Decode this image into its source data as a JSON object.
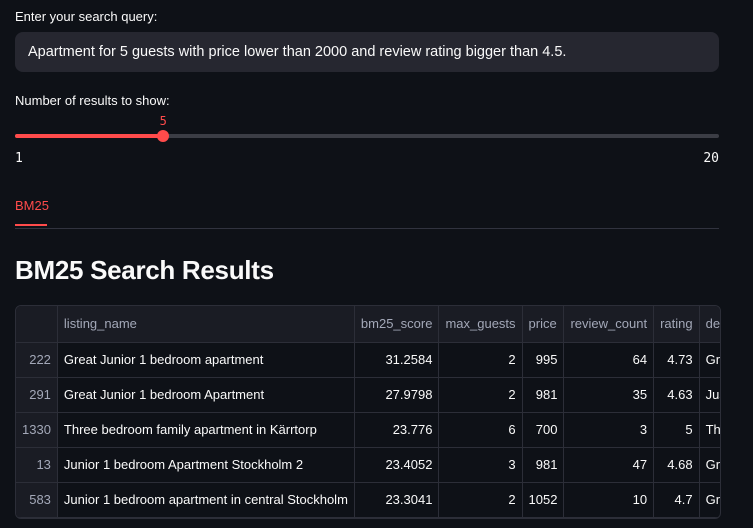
{
  "query": {
    "label": "Enter your search query:",
    "value": "Apartment for 5 guests with price lower than 2000 and review rating bigger than 4.5."
  },
  "slider": {
    "label": "Number of results to show:",
    "value": 5,
    "min": 1,
    "max": 20,
    "value_text": "5",
    "min_text": "1",
    "max_text": "20",
    "accent": "#ff4b4b"
  },
  "tabs": [
    {
      "label": "BM25",
      "active": true
    }
  ],
  "results": {
    "title": "BM25 Search Results",
    "columns": [
      "",
      "listing_name",
      "bm25_score",
      "max_guests",
      "price",
      "review_count",
      "rating",
      "desc"
    ],
    "rows": [
      {
        "idx": "222",
        "listing_name": "Great Junior 1 bedroom apartment",
        "bm25_score": "31.2584",
        "max_guests": "2",
        "price": "995",
        "review_count": "64",
        "rating": "4.73",
        "desc": "Grea"
      },
      {
        "idx": "291",
        "listing_name": "Great Junior 1 bedroom Apartment",
        "bm25_score": "27.9798",
        "max_guests": "2",
        "price": "981",
        "review_count": "35",
        "rating": "4.63",
        "desc": "Just"
      },
      {
        "idx": "1330",
        "listing_name": "Three bedroom family apartment in Kärrtorp",
        "bm25_score": "23.776",
        "max_guests": "6",
        "price": "700",
        "review_count": "3",
        "rating": "5",
        "desc": "The"
      },
      {
        "idx": "13",
        "listing_name": "Junior 1 bedroom Apartment Stockholm 2",
        "bm25_score": "23.4052",
        "max_guests": "3",
        "price": "981",
        "review_count": "47",
        "rating": "4.68",
        "desc": "Grea"
      },
      {
        "idx": "583",
        "listing_name": "Junior 1 bedroom apartment in central Stockholm",
        "bm25_score": "23.3041",
        "max_guests": "2",
        "price": "1052",
        "review_count": "10",
        "rating": "4.7",
        "desc": "Grea"
      }
    ]
  }
}
